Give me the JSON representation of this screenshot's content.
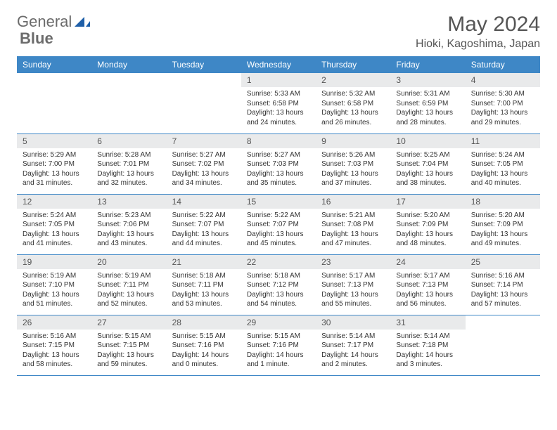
{
  "logo": {
    "text1": "General",
    "text2": "Blue"
  },
  "title": "May 2024",
  "location": "Hioki, Kagoshima, Japan",
  "colors": {
    "header_bg": "#3e87c6",
    "header_fg": "#ffffff",
    "daynum_bg": "#e9eaeb",
    "text": "#555555",
    "body_text": "#333333",
    "logo_icon": "#1f5fa8"
  },
  "weekdays": [
    "Sunday",
    "Monday",
    "Tuesday",
    "Wednesday",
    "Thursday",
    "Friday",
    "Saturday"
  ],
  "weeks": [
    [
      {
        "n": "",
        "l1": "",
        "l2": "",
        "l3": "",
        "l4": "",
        "empty": true
      },
      {
        "n": "",
        "l1": "",
        "l2": "",
        "l3": "",
        "l4": "",
        "empty": true
      },
      {
        "n": "",
        "l1": "",
        "l2": "",
        "l3": "",
        "l4": "",
        "empty": true
      },
      {
        "n": "1",
        "l1": "Sunrise: 5:33 AM",
        "l2": "Sunset: 6:58 PM",
        "l3": "Daylight: 13 hours",
        "l4": "and 24 minutes."
      },
      {
        "n": "2",
        "l1": "Sunrise: 5:32 AM",
        "l2": "Sunset: 6:58 PM",
        "l3": "Daylight: 13 hours",
        "l4": "and 26 minutes."
      },
      {
        "n": "3",
        "l1": "Sunrise: 5:31 AM",
        "l2": "Sunset: 6:59 PM",
        "l3": "Daylight: 13 hours",
        "l4": "and 28 minutes."
      },
      {
        "n": "4",
        "l1": "Sunrise: 5:30 AM",
        "l2": "Sunset: 7:00 PM",
        "l3": "Daylight: 13 hours",
        "l4": "and 29 minutes."
      }
    ],
    [
      {
        "n": "5",
        "l1": "Sunrise: 5:29 AM",
        "l2": "Sunset: 7:00 PM",
        "l3": "Daylight: 13 hours",
        "l4": "and 31 minutes."
      },
      {
        "n": "6",
        "l1": "Sunrise: 5:28 AM",
        "l2": "Sunset: 7:01 PM",
        "l3": "Daylight: 13 hours",
        "l4": "and 32 minutes."
      },
      {
        "n": "7",
        "l1": "Sunrise: 5:27 AM",
        "l2": "Sunset: 7:02 PM",
        "l3": "Daylight: 13 hours",
        "l4": "and 34 minutes."
      },
      {
        "n": "8",
        "l1": "Sunrise: 5:27 AM",
        "l2": "Sunset: 7:03 PM",
        "l3": "Daylight: 13 hours",
        "l4": "and 35 minutes."
      },
      {
        "n": "9",
        "l1": "Sunrise: 5:26 AM",
        "l2": "Sunset: 7:03 PM",
        "l3": "Daylight: 13 hours",
        "l4": "and 37 minutes."
      },
      {
        "n": "10",
        "l1": "Sunrise: 5:25 AM",
        "l2": "Sunset: 7:04 PM",
        "l3": "Daylight: 13 hours",
        "l4": "and 38 minutes."
      },
      {
        "n": "11",
        "l1": "Sunrise: 5:24 AM",
        "l2": "Sunset: 7:05 PM",
        "l3": "Daylight: 13 hours",
        "l4": "and 40 minutes."
      }
    ],
    [
      {
        "n": "12",
        "l1": "Sunrise: 5:24 AM",
        "l2": "Sunset: 7:05 PM",
        "l3": "Daylight: 13 hours",
        "l4": "and 41 minutes."
      },
      {
        "n": "13",
        "l1": "Sunrise: 5:23 AM",
        "l2": "Sunset: 7:06 PM",
        "l3": "Daylight: 13 hours",
        "l4": "and 43 minutes."
      },
      {
        "n": "14",
        "l1": "Sunrise: 5:22 AM",
        "l2": "Sunset: 7:07 PM",
        "l3": "Daylight: 13 hours",
        "l4": "and 44 minutes."
      },
      {
        "n": "15",
        "l1": "Sunrise: 5:22 AM",
        "l2": "Sunset: 7:07 PM",
        "l3": "Daylight: 13 hours",
        "l4": "and 45 minutes."
      },
      {
        "n": "16",
        "l1": "Sunrise: 5:21 AM",
        "l2": "Sunset: 7:08 PM",
        "l3": "Daylight: 13 hours",
        "l4": "and 47 minutes."
      },
      {
        "n": "17",
        "l1": "Sunrise: 5:20 AM",
        "l2": "Sunset: 7:09 PM",
        "l3": "Daylight: 13 hours",
        "l4": "and 48 minutes."
      },
      {
        "n": "18",
        "l1": "Sunrise: 5:20 AM",
        "l2": "Sunset: 7:09 PM",
        "l3": "Daylight: 13 hours",
        "l4": "and 49 minutes."
      }
    ],
    [
      {
        "n": "19",
        "l1": "Sunrise: 5:19 AM",
        "l2": "Sunset: 7:10 PM",
        "l3": "Daylight: 13 hours",
        "l4": "and 51 minutes."
      },
      {
        "n": "20",
        "l1": "Sunrise: 5:19 AM",
        "l2": "Sunset: 7:11 PM",
        "l3": "Daylight: 13 hours",
        "l4": "and 52 minutes."
      },
      {
        "n": "21",
        "l1": "Sunrise: 5:18 AM",
        "l2": "Sunset: 7:11 PM",
        "l3": "Daylight: 13 hours",
        "l4": "and 53 minutes."
      },
      {
        "n": "22",
        "l1": "Sunrise: 5:18 AM",
        "l2": "Sunset: 7:12 PM",
        "l3": "Daylight: 13 hours",
        "l4": "and 54 minutes."
      },
      {
        "n": "23",
        "l1": "Sunrise: 5:17 AM",
        "l2": "Sunset: 7:13 PM",
        "l3": "Daylight: 13 hours",
        "l4": "and 55 minutes."
      },
      {
        "n": "24",
        "l1": "Sunrise: 5:17 AM",
        "l2": "Sunset: 7:13 PM",
        "l3": "Daylight: 13 hours",
        "l4": "and 56 minutes."
      },
      {
        "n": "25",
        "l1": "Sunrise: 5:16 AM",
        "l2": "Sunset: 7:14 PM",
        "l3": "Daylight: 13 hours",
        "l4": "and 57 minutes."
      }
    ],
    [
      {
        "n": "26",
        "l1": "Sunrise: 5:16 AM",
        "l2": "Sunset: 7:15 PM",
        "l3": "Daylight: 13 hours",
        "l4": "and 58 minutes."
      },
      {
        "n": "27",
        "l1": "Sunrise: 5:15 AM",
        "l2": "Sunset: 7:15 PM",
        "l3": "Daylight: 13 hours",
        "l4": "and 59 minutes."
      },
      {
        "n": "28",
        "l1": "Sunrise: 5:15 AM",
        "l2": "Sunset: 7:16 PM",
        "l3": "Daylight: 14 hours",
        "l4": "and 0 minutes."
      },
      {
        "n": "29",
        "l1": "Sunrise: 5:15 AM",
        "l2": "Sunset: 7:16 PM",
        "l3": "Daylight: 14 hours",
        "l4": "and 1 minute."
      },
      {
        "n": "30",
        "l1": "Sunrise: 5:14 AM",
        "l2": "Sunset: 7:17 PM",
        "l3": "Daylight: 14 hours",
        "l4": "and 2 minutes."
      },
      {
        "n": "31",
        "l1": "Sunrise: 5:14 AM",
        "l2": "Sunset: 7:18 PM",
        "l3": "Daylight: 14 hours",
        "l4": "and 3 minutes."
      },
      {
        "n": "",
        "l1": "",
        "l2": "",
        "l3": "",
        "l4": "",
        "empty": true
      }
    ]
  ]
}
